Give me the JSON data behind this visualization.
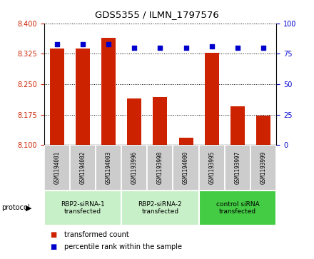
{
  "title": "GDS5355 / ILMN_1797576",
  "samples": [
    "GSM1194001",
    "GSM1194002",
    "GSM1194003",
    "GSM1193996",
    "GSM1193998",
    "GSM1194000",
    "GSM1193995",
    "GSM1193997",
    "GSM1193999"
  ],
  "red_values": [
    8.338,
    8.338,
    8.365,
    8.215,
    8.218,
    8.118,
    8.328,
    8.195,
    8.173
  ],
  "blue_values": [
    83,
    83,
    83,
    80,
    80,
    80,
    81,
    80,
    80
  ],
  "ylim_left": [
    8.1,
    8.4
  ],
  "ylim_right": [
    0,
    100
  ],
  "yticks_left": [
    8.1,
    8.175,
    8.25,
    8.325,
    8.4
  ],
  "yticks_right": [
    0,
    25,
    50,
    75,
    100
  ],
  "groups": [
    {
      "label": "RBP2-siRNA-1\ntransfected",
      "indices": [
        0,
        1,
        2
      ],
      "color": "#c8f0c8"
    },
    {
      "label": "RBP2-siRNA-2\ntransfected",
      "indices": [
        3,
        4,
        5
      ],
      "color": "#c8f0c8"
    },
    {
      "label": "control siRNA\ntransfected",
      "indices": [
        6,
        7,
        8
      ],
      "color": "#44cc44"
    }
  ],
  "bar_color": "#cc2200",
  "dot_color": "#0000cc",
  "bar_width": 0.55,
  "bg_color": "#ffffff",
  "left_label_color": "#cc2200",
  "right_label_color": "#0000cc",
  "legend_items": [
    {
      "color": "#cc2200",
      "label": "transformed count"
    },
    {
      "color": "#0000cc",
      "label": "percentile rank within the sample"
    }
  ],
  "group_box_color": "#cccccc",
  "protocol_label": "protocol"
}
